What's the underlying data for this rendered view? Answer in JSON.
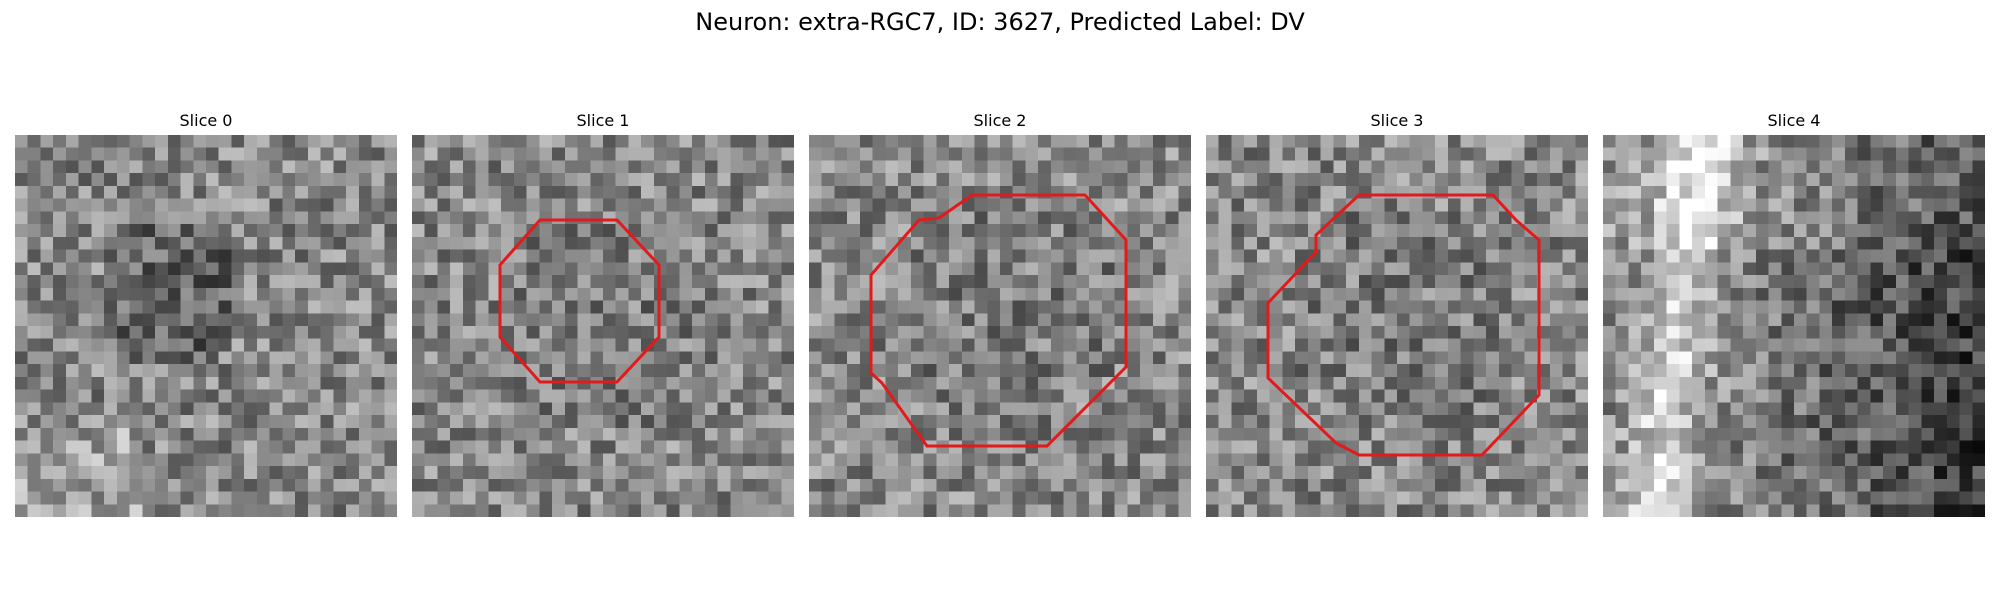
{
  "figure": {
    "title": "Neuron: extra-RGC7, ID: 3627, Predicted Label: DV"
  },
  "panels": [
    {
      "title": "Slice 0",
      "has_contour": false
    },
    {
      "title": "Slice 1",
      "has_contour": true
    },
    {
      "title": "Slice 2",
      "has_contour": true
    },
    {
      "title": "Slice 3",
      "has_contour": true
    },
    {
      "title": "Slice 4",
      "has_contour": false
    }
  ],
  "colors": {
    "contour": "#e31a1c",
    "background": "#ffffff"
  }
}
